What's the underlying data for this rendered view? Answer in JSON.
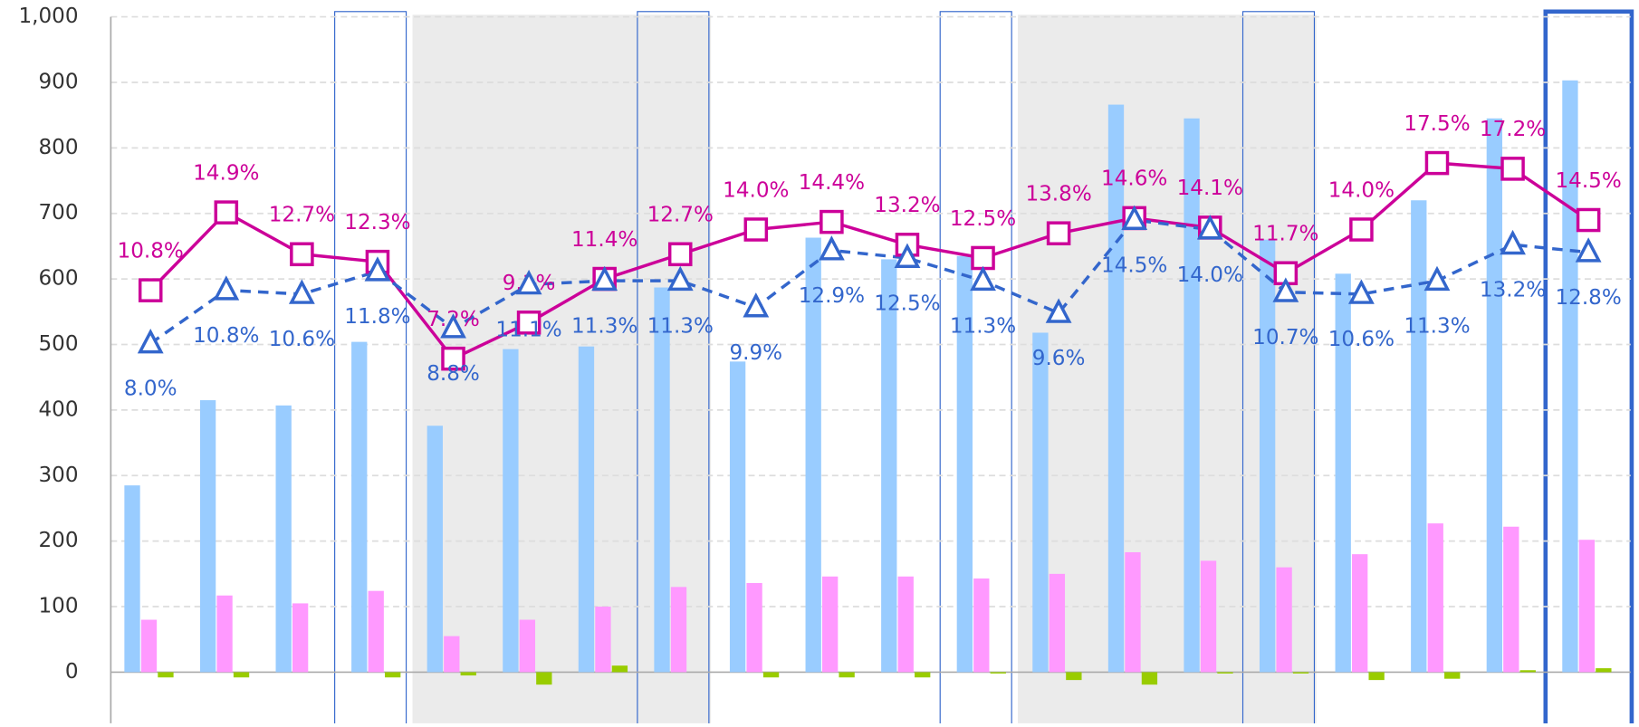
{
  "chart_data": {
    "type": "bar",
    "ylim": [
      -78,
      1000
    ],
    "yticks": [
      0,
      100,
      200,
      300,
      400,
      500,
      600,
      700,
      800,
      900,
      {
        "value": 1000,
        "label": "1,000"
      }
    ],
    "y2lim": [
      -12,
      25.2
    ],
    "grid": true,
    "series": [
      {
        "name": null,
        "type": "bar",
        "color": "#99ccff",
        "values": [
          285,
          415,
          407,
          504,
          376,
          493,
          497,
          587,
          474,
          663,
          630,
          635,
          518,
          866,
          845,
          660,
          608,
          720,
          845,
          903
        ]
      },
      {
        "name": null,
        "type": "bar",
        "color": "#ff99ff",
        "values": [
          80,
          117,
          105,
          124,
          55,
          80,
          100,
          130,
          136,
          146,
          146,
          143,
          150,
          183,
          170,
          160,
          180,
          227,
          222,
          202
        ]
      },
      {
        "name": null,
        "type": "bar",
        "color": "#99cc00",
        "values": [
          -8,
          -8,
          0,
          -8,
          -5,
          -19,
          10,
          0,
          -8,
          -8,
          -8,
          -2,
          -12,
          -19,
          -2,
          -2,
          -12,
          -10,
          3,
          6
        ]
      },
      {
        "name": null,
        "type": "line",
        "axis": "y2",
        "marker": "square",
        "color": "#cc0099",
        "values": [
          10.8,
          14.9,
          12.7,
          12.3,
          7.2,
          9.1,
          11.4,
          12.7,
          14.0,
          14.4,
          13.2,
          12.5,
          13.8,
          14.6,
          14.1,
          11.7,
          14.0,
          17.5,
          17.2,
          14.5
        ],
        "value_labels": [
          "10.8%",
          "14.9%",
          "12.7%",
          "12.3%",
          "7.2%",
          "9.1%",
          "11.4%",
          "12.7%",
          "14.0%",
          "14.4%",
          "13.2%",
          "12.5%",
          "13.8%",
          "14.6%",
          "14.1%",
          "11.7%",
          "14.0%",
          "17.5%",
          "17.2%",
          "14.5%"
        ]
      },
      {
        "name": null,
        "type": "line",
        "axis": "y2",
        "marker": "triangle",
        "dashed": true,
        "color": "#3366cc",
        "values": [
          8.0,
          10.8,
          10.6,
          11.8,
          8.8,
          11.1,
          11.3,
          11.3,
          9.9,
          12.9,
          12.5,
          11.3,
          9.6,
          14.5,
          14.0,
          10.7,
          10.6,
          11.3,
          13.2,
          12.8
        ],
        "value_labels": [
          "8.0%",
          "10.8%",
          "10.6%",
          "11.8%",
          "8.8%",
          "11.1%",
          "11.3%",
          "11.3%",
          "9.9%",
          "12.9%",
          "12.5%",
          "11.3%",
          "9.6%",
          "14.5%",
          "14.0%",
          "10.7%",
          "10.6%",
          "11.3%",
          "13.2%",
          "12.8%"
        ]
      }
    ]
  }
}
